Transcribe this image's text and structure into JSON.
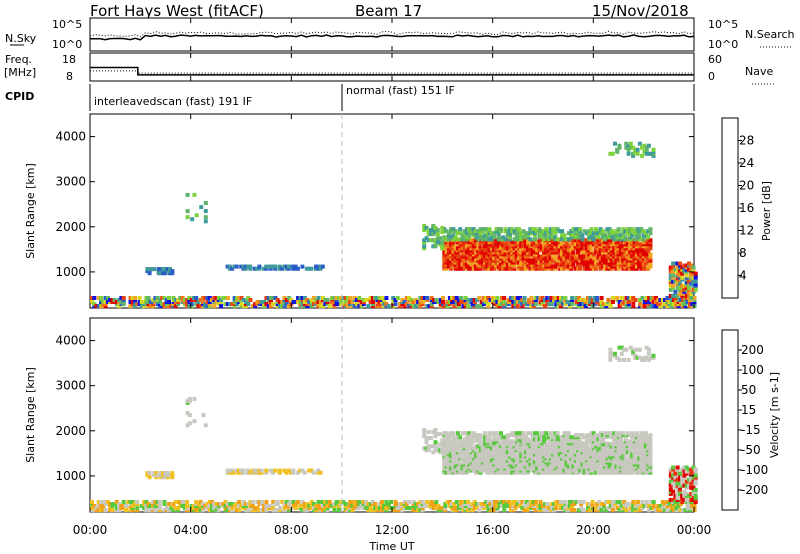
{
  "header": {
    "station": "Fort Hays West (fitACF)",
    "beam": "Beam 17",
    "date": "15/Nov/2018"
  },
  "noise_panel": {
    "left_label": "N.Sky",
    "right_label": "N.Search",
    "left_ticks": [
      "10^5",
      "10^0"
    ],
    "right_ticks": [
      "10^5",
      "10^0"
    ]
  },
  "freq_panel": {
    "left_label_1": "Freq.",
    "left_label_2": "[MHz]",
    "left_ticks": [
      "18",
      "8"
    ],
    "right_ticks": [
      "60",
      "0"
    ],
    "right_label": "Nave"
  },
  "cpid_panel": {
    "label": "CPID",
    "segments": [
      {
        "text": "interleavedscan (fast) 191 IF",
        "start_hour": 0
      },
      {
        "text": "normal (fast) 151 IF",
        "start_hour": 10
      }
    ]
  },
  "chart_data": [
    {
      "type": "heatmap",
      "title": "",
      "xlabel": "",
      "ylabel": "Slant Range [km]",
      "x_range": [
        "00:00",
        "24:00"
      ],
      "ylim": [
        200,
        4500
      ],
      "y_ticks": [
        1000,
        2000,
        3000,
        4000
      ],
      "colorbar": {
        "label": "Power [dB]",
        "ticks": [
          4,
          8,
          12,
          16,
          20,
          24,
          28
        ],
        "colors": [
          "#1010e0",
          "#2a5dc8",
          "#3f9a9a",
          "#5fb46a",
          "#7dd23c",
          "#d8d820",
          "#f2a624",
          "#f07818",
          "#e84412",
          "#e00000"
        ]
      }
    },
    {
      "type": "heatmap",
      "title": "",
      "xlabel": "Time UT",
      "ylabel": "Slant Range [km]",
      "x_range": [
        "00:00",
        "24:00"
      ],
      "x_ticks": [
        "00:00",
        "04:00",
        "08:00",
        "12:00",
        "16:00",
        "20:00",
        "00:00"
      ],
      "ylim": [
        200,
        4500
      ],
      "y_ticks": [
        1000,
        2000,
        3000,
        4000
      ],
      "colorbar": {
        "label": "Velocity [m s-1]",
        "ticks": [
          "200",
          "100",
          "50",
          "15",
          "-15",
          "-50",
          "-100",
          "-200"
        ],
        "colors": [
          "#1a1ab4",
          "#2878c8",
          "#3aa58c",
          "#58c83c",
          "#c8c8c0",
          "#f0c020",
          "#f0a014",
          "#f06e10",
          "#e83010",
          "#e00000"
        ]
      }
    }
  ]
}
